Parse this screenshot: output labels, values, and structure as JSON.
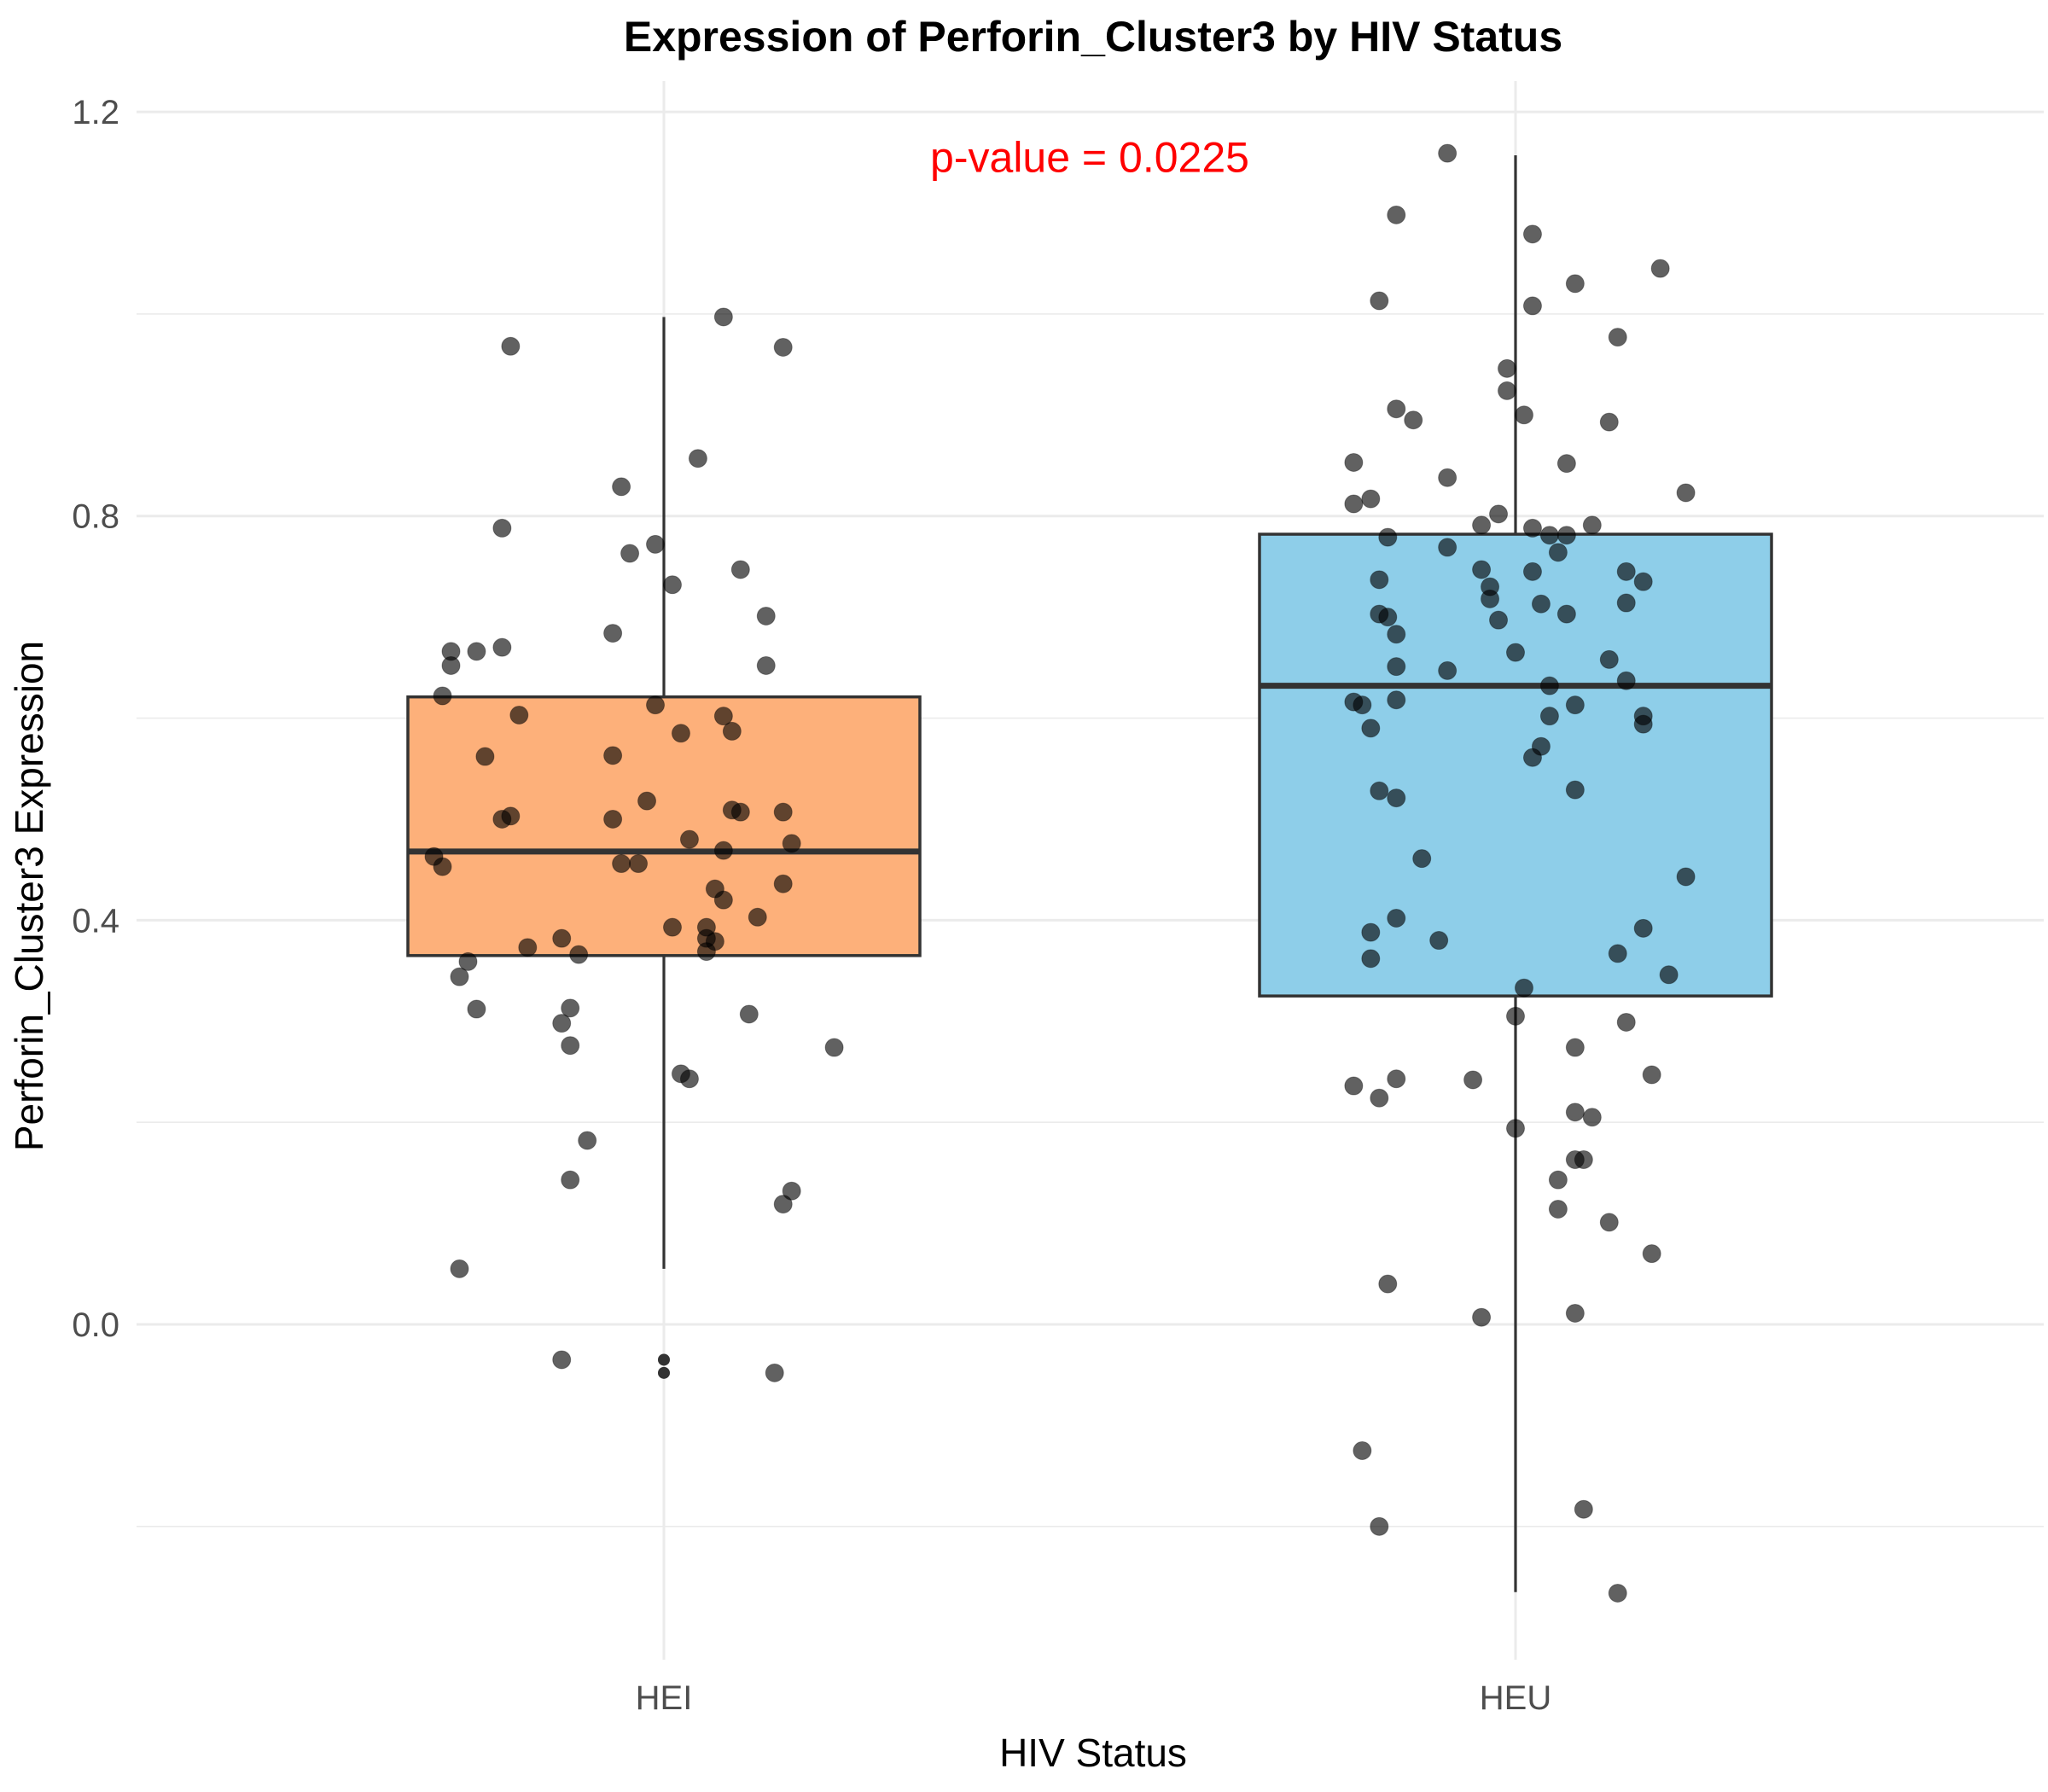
{
  "chart_data": {
    "type": "box",
    "title": "Expression of Perforin_Cluster3 by HIV Status",
    "xlabel": "HIV Status",
    "ylabel": "Perforin_Cluster3 Expression",
    "categories": [
      "HEI",
      "HEU"
    ],
    "ylim": [
      -0.32,
      1.23
    ],
    "yticks": [
      0.0,
      0.4,
      0.8,
      1.2
    ],
    "ytick_labels": [
      "0.0",
      "0.4",
      "0.8",
      "1.2"
    ],
    "grid": true,
    "legend": "none",
    "annotation": {
      "text": "p-value = 0.0225",
      "color": "#ff0000",
      "x": 1.5,
      "y": 1.155
    },
    "groups": [
      {
        "name": "HEI",
        "color": "#FDB07A",
        "box": {
          "q1": 0.365,
          "median": 0.468,
          "q3": 0.621,
          "whisker_low": 0.055,
          "whisker_high": 0.997
        },
        "outliers": [
          -0.035,
          -0.048
        ],
        "points": [
          [
            0.82,
            0.968
          ],
          [
            1.07,
            0.997
          ],
          [
            1.14,
            0.967
          ],
          [
            1.04,
            0.857
          ],
          [
            0.95,
            0.829
          ],
          [
            0.81,
            0.788
          ],
          [
            0.99,
            0.772
          ],
          [
            0.96,
            0.763
          ],
          [
            1.09,
            0.747
          ],
          [
            1.01,
            0.732
          ],
          [
            1.12,
            0.701
          ],
          [
            0.94,
            0.684
          ],
          [
            0.81,
            0.67
          ],
          [
            0.75,
            0.666
          ],
          [
            0.78,
            0.666
          ],
          [
            0.75,
            0.652
          ],
          [
            1.12,
            0.652
          ],
          [
            0.74,
            0.622
          ],
          [
            0.99,
            0.613
          ],
          [
            0.83,
            0.603
          ],
          [
            1.07,
            0.602
          ],
          [
            1.02,
            0.585
          ],
          [
            1.08,
            0.587
          ],
          [
            0.79,
            0.562
          ],
          [
            0.94,
            0.563
          ],
          [
            0.98,
            0.518
          ],
          [
            1.08,
            0.509
          ],
          [
            1.09,
            0.507
          ],
          [
            1.14,
            0.507
          ],
          [
            0.81,
            0.5
          ],
          [
            0.82,
            0.503
          ],
          [
            0.94,
            0.5
          ],
          [
            1.03,
            0.48
          ],
          [
            1.15,
            0.476
          ],
          [
            1.07,
            0.469
          ],
          [
            0.73,
            0.463
          ],
          [
            0.74,
            0.453
          ],
          [
            0.95,
            0.456
          ],
          [
            0.97,
            0.456
          ],
          [
            1.14,
            0.436
          ],
          [
            1.06,
            0.431
          ],
          [
            1.07,
            0.42
          ],
          [
            1.11,
            0.403
          ],
          [
            1.01,
            0.393
          ],
          [
            1.05,
            0.393
          ],
          [
            1.05,
            0.382
          ],
          [
            1.06,
            0.379
          ],
          [
            0.88,
            0.382
          ],
          [
            0.84,
            0.373
          ],
          [
            1.05,
            0.369
          ],
          [
            0.9,
            0.366
          ],
          [
            0.77,
            0.359
          ],
          [
            0.76,
            0.344
          ],
          [
            0.78,
            0.312
          ],
          [
            0.89,
            0.313
          ],
          [
            0.88,
            0.298
          ],
          [
            1.1,
            0.307
          ],
          [
            0.89,
            0.276
          ],
          [
            1.2,
            0.274
          ],
          [
            1.02,
            0.248
          ],
          [
            1.03,
            0.243
          ],
          [
            0.91,
            0.182
          ],
          [
            0.89,
            0.143
          ],
          [
            1.15,
            0.132
          ],
          [
            1.14,
            0.119
          ],
          [
            0.76,
            0.055
          ],
          [
            0.88,
            -0.035
          ],
          [
            1.13,
            -0.048
          ]
        ]
      },
      {
        "name": "HEU",
        "color": "#8ECEE9",
        "box": {
          "q1": 0.325,
          "median": 0.632,
          "q3": 0.782,
          "whisker_low": -0.265,
          "whisker_high": 1.157
        },
        "outliers": [],
        "points": [
          [
            1.92,
            1.159
          ],
          [
            1.86,
            1.098
          ],
          [
            2.02,
            1.079
          ],
          [
            2.17,
            1.045
          ],
          [
            2.07,
            1.03
          ],
          [
            1.84,
            1.013
          ],
          [
            2.02,
            1.008
          ],
          [
            2.12,
            0.977
          ],
          [
            1.99,
            0.946
          ],
          [
            1.99,
            0.924
          ],
          [
            1.86,
            0.906
          ],
          [
            2.01,
            0.9
          ],
          [
            1.88,
            0.895
          ],
          [
            2.11,
            0.893
          ],
          [
            1.81,
            0.853
          ],
          [
            2.06,
            0.852
          ],
          [
            1.92,
            0.838
          ],
          [
            2.2,
            0.823
          ],
          [
            1.83,
            0.817
          ],
          [
            1.81,
            0.812
          ],
          [
            1.98,
            0.802
          ],
          [
            1.96,
            0.791
          ],
          [
            2.02,
            0.788
          ],
          [
            2.09,
            0.791
          ],
          [
            2.04,
            0.781
          ],
          [
            2.06,
            0.781
          ],
          [
            1.85,
            0.779
          ],
          [
            1.92,
            0.769
          ],
          [
            2.05,
            0.764
          ],
          [
            1.96,
            0.747
          ],
          [
            2.02,
            0.745
          ],
          [
            2.13,
            0.745
          ],
          [
            1.84,
            0.737
          ],
          [
            2.15,
            0.735
          ],
          [
            1.97,
            0.73
          ],
          [
            1.97,
            0.718
          ],
          [
            2.03,
            0.713
          ],
          [
            2.13,
            0.714
          ],
          [
            2.06,
            0.703
          ],
          [
            1.84,
            0.703
          ],
          [
            1.85,
            0.7
          ],
          [
            1.98,
            0.697
          ],
          [
            1.86,
            0.683
          ],
          [
            2.0,
            0.665
          ],
          [
            2.11,
            0.658
          ],
          [
            1.86,
            0.651
          ],
          [
            1.92,
            0.647
          ],
          [
            2.13,
            0.637
          ],
          [
            2.04,
            0.632
          ],
          [
            1.81,
            0.616
          ],
          [
            1.82,
            0.613
          ],
          [
            1.86,
            0.618
          ],
          [
            2.07,
            0.613
          ],
          [
            2.04,
            0.602
          ],
          [
            2.15,
            0.602
          ],
          [
            2.15,
            0.594
          ],
          [
            1.83,
            0.59
          ],
          [
            2.03,
            0.572
          ],
          [
            2.02,
            0.561
          ],
          [
            2.07,
            0.529
          ],
          [
            1.84,
            0.528
          ],
          [
            1.86,
            0.521
          ],
          [
            1.89,
            0.461
          ],
          [
            2.2,
            0.443
          ],
          [
            1.86,
            0.402
          ],
          [
            2.15,
            0.392
          ],
          [
            1.83,
            0.388
          ],
          [
            1.91,
            0.38
          ],
          [
            2.12,
            0.367
          ],
          [
            2.18,
            0.346
          ],
          [
            1.83,
            0.362
          ],
          [
            2.01,
            0.333
          ],
          [
            2.0,
            0.305
          ],
          [
            2.13,
            0.299
          ],
          [
            2.07,
            0.274
          ],
          [
            2.16,
            0.247
          ],
          [
            1.86,
            0.243
          ],
          [
            1.95,
            0.242
          ],
          [
            1.81,
            0.236
          ],
          [
            1.84,
            0.224
          ],
          [
            2.07,
            0.21
          ],
          [
            2.09,
            0.205
          ],
          [
            2.0,
            0.194
          ],
          [
            2.07,
            0.163
          ],
          [
            2.08,
            0.163
          ],
          [
            2.05,
            0.143
          ],
          [
            2.05,
            0.114
          ],
          [
            2.11,
            0.101
          ],
          [
            2.16,
            0.07
          ],
          [
            1.85,
            0.04
          ],
          [
            2.07,
            0.011
          ],
          [
            1.96,
            0.007
          ],
          [
            1.82,
            -0.125
          ],
          [
            2.08,
            -0.183
          ],
          [
            1.84,
            -0.2
          ],
          [
            2.12,
            -0.266
          ]
        ]
      }
    ]
  }
}
